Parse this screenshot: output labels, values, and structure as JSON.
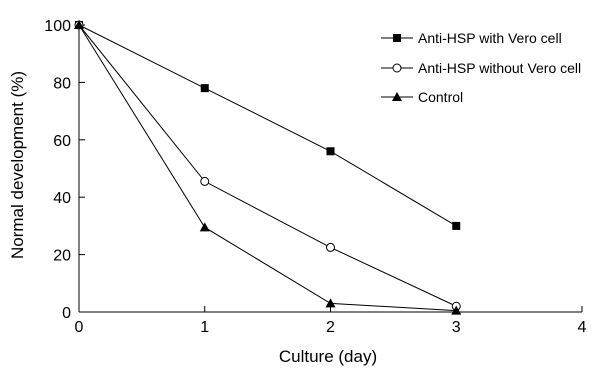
{
  "chart_data": {
    "type": "line",
    "title": "",
    "xlabel": "Culture (day)",
    "ylabel": "Normal development (%)",
    "xlim": [
      0,
      4
    ],
    "ylim": [
      0,
      100
    ],
    "x_ticks": [
      0,
      1,
      2,
      3,
      4
    ],
    "y_ticks": [
      0,
      20,
      40,
      60,
      80,
      100
    ],
    "grid": false,
    "legend_position": "top-right",
    "series": [
      {
        "name": "Anti-HSP with Vero cell",
        "marker": "square-filled",
        "x": [
          0,
          1,
          2,
          3
        ],
        "y": [
          100,
          78,
          56,
          30
        ]
      },
      {
        "name": "Anti-HSP without Vero cell",
        "marker": "circle-open",
        "x": [
          0,
          1,
          2,
          3
        ],
        "y": [
          100,
          45.5,
          22.5,
          2
        ]
      },
      {
        "name": "Control",
        "marker": "triangle-filled",
        "x": [
          0,
          1,
          2,
          3
        ],
        "y": [
          100,
          29.5,
          3,
          0.5
        ]
      }
    ]
  }
}
